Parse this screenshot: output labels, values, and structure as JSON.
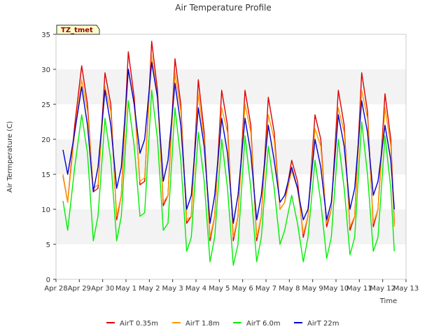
{
  "chart_data": {
    "type": "line",
    "title": "Air Temperature Profile",
    "xlabel": "Time",
    "ylabel": "Air Termperature (C)",
    "badge": "TZ_tmet",
    "ylim": [
      0,
      35
    ],
    "yticks": [
      0,
      5,
      10,
      15,
      20,
      25,
      30,
      35
    ],
    "xlim_days": [
      0,
      15
    ],
    "xtick_labels": [
      "Apr 28",
      "Apr 29",
      "Apr 30",
      "May 1",
      "May 2",
      "May 3",
      "May 4",
      "May 5",
      "May 6",
      "May 7",
      "May 8",
      "May 9",
      "May 10",
      "May 11",
      "May 12",
      "May 13"
    ],
    "grid": "horizontal bands",
    "legend_position": "bottom",
    "series": [
      {
        "name": "AirT 0.35m",
        "color": "#dd0000",
        "x": [
          0.3,
          0.5,
          0.8,
          1.1,
          1.35,
          1.6,
          1.8,
          2.1,
          2.35,
          2.6,
          2.8,
          3.1,
          3.35,
          3.6,
          3.8,
          4.1,
          4.35,
          4.6,
          4.8,
          5.1,
          5.35,
          5.6,
          5.8,
          6.1,
          6.35,
          6.6,
          6.8,
          7.1,
          7.35,
          7.6,
          7.8,
          8.1,
          8.35,
          8.6,
          8.8,
          9.1,
          9.35,
          9.6,
          9.8,
          10.1,
          10.35,
          10.6,
          10.8,
          11.1,
          11.35,
          11.6,
          11.8,
          12.1,
          12.35,
          12.6,
          12.8,
          13.1,
          13.35,
          13.6,
          13.8,
          14.1,
          14.35,
          14.5
        ],
        "y": [
          14.8,
          11,
          22,
          30.5,
          25,
          12.5,
          13,
          29.5,
          25,
          8.5,
          12,
          32.5,
          26,
          13.5,
          14,
          34,
          27,
          10.5,
          12,
          31.5,
          25,
          8,
          9,
          28.5,
          21,
          5.5,
          9,
          27,
          22,
          5.5,
          9,
          27,
          22,
          5.5,
          9,
          26,
          21,
          10,
          11,
          17,
          14,
          6,
          9,
          23.5,
          20,
          7.5,
          10,
          27,
          22,
          7,
          9,
          29.5,
          24,
          7.5,
          10,
          26.5,
          20,
          8
        ]
      },
      {
        "name": "AirT 1.8m",
        "color": "#ff9900",
        "x": [
          0.3,
          0.5,
          0.8,
          1.1,
          1.35,
          1.6,
          1.8,
          2.1,
          2.35,
          2.6,
          2.8,
          3.1,
          3.35,
          3.6,
          3.8,
          4.1,
          4.35,
          4.6,
          4.8,
          5.1,
          5.35,
          5.6,
          5.8,
          6.1,
          6.35,
          6.6,
          6.8,
          7.1,
          7.35,
          7.6,
          7.8,
          8.1,
          8.35,
          8.6,
          8.8,
          9.1,
          9.35,
          9.6,
          9.8,
          10.1,
          10.35,
          10.6,
          10.8,
          11.1,
          11.35,
          11.6,
          11.8,
          12.1,
          12.35,
          12.6,
          12.8,
          13.1,
          13.35,
          13.6,
          13.8,
          14.1,
          14.35,
          14.5
        ],
        "y": [
          15,
          11,
          21,
          28.5,
          24,
          13,
          13.5,
          27.5,
          24,
          9,
          12,
          30,
          25,
          14,
          14.5,
          32,
          26,
          11,
          12,
          29.5,
          24,
          8.5,
          9,
          26.5,
          20,
          6,
          9,
          24.5,
          21,
          6,
          9,
          25,
          21,
          6,
          9,
          23.5,
          20,
          10,
          11,
          15.5,
          13,
          6.5,
          9,
          21.5,
          19,
          8,
          10,
          24.5,
          21,
          7.5,
          9,
          27,
          23,
          8,
          10,
          24.5,
          19,
          7.5
        ]
      },
      {
        "name": "AirT 6.0m",
        "color": "#00ee00",
        "x": [
          0.3,
          0.5,
          0.8,
          1.1,
          1.35,
          1.6,
          1.8,
          2.1,
          2.35,
          2.6,
          2.8,
          3.1,
          3.35,
          3.6,
          3.8,
          4.1,
          4.35,
          4.6,
          4.8,
          5.1,
          5.35,
          5.6,
          5.8,
          6.1,
          6.35,
          6.6,
          6.8,
          7.1,
          7.35,
          7.6,
          7.8,
          8.1,
          8.35,
          8.6,
          8.8,
          9.1,
          9.35,
          9.6,
          9.8,
          10.1,
          10.35,
          10.6,
          10.8,
          11.1,
          11.35,
          11.6,
          11.8,
          12.1,
          12.35,
          12.6,
          12.8,
          13.1,
          13.35,
          13.6,
          13.8,
          14.1,
          14.35,
          14.5
        ],
        "y": [
          11.2,
          7,
          16,
          23.5,
          18,
          5.5,
          9,
          23,
          17,
          5.5,
          9,
          25.5,
          19,
          9,
          9.5,
          27,
          20,
          7,
          8,
          24.5,
          17,
          4,
          6,
          21,
          14,
          2.5,
          6,
          20,
          13,
          2,
          5,
          20.5,
          13,
          2.5,
          6,
          19,
          13,
          5,
          7,
          12,
          8,
          2.5,
          6,
          17,
          11,
          3,
          6,
          20,
          13,
          3.5,
          6,
          22.5,
          15,
          4,
          6,
          20.5,
          13,
          4
        ]
      },
      {
        "name": "AirT 22m",
        "color": "#0000cc",
        "x": [
          0.3,
          0.5,
          0.8,
          1.1,
          1.35,
          1.6,
          1.8,
          2.1,
          2.35,
          2.6,
          2.8,
          3.1,
          3.35,
          3.6,
          3.8,
          4.1,
          4.35,
          4.6,
          4.8,
          5.1,
          5.35,
          5.6,
          5.8,
          6.1,
          6.35,
          6.6,
          6.8,
          7.1,
          7.35,
          7.6,
          7.8,
          8.1,
          8.35,
          8.6,
          8.8,
          9.1,
          9.35,
          9.6,
          9.8,
          10.1,
          10.35,
          10.6,
          10.8,
          11.1,
          11.35,
          11.6,
          11.8,
          12.1,
          12.35,
          12.6,
          12.8,
          13.1,
          13.35,
          13.6,
          13.8,
          14.1,
          14.35,
          14.5
        ],
        "y": [
          18.5,
          15,
          21,
          27.5,
          22,
          12.5,
          16,
          27,
          22,
          13,
          16,
          30,
          25,
          18,
          20,
          31,
          26,
          14,
          17,
          28,
          22,
          10,
          12,
          24.5,
          19,
          8,
          12,
          23,
          18,
          8,
          12,
          23,
          18,
          8.5,
          12,
          22,
          17,
          11,
          12,
          16,
          13,
          8.5,
          10,
          20,
          16,
          8.5,
          11,
          23.5,
          19,
          10,
          13,
          25.5,
          21,
          12,
          14,
          22,
          17,
          10
        ]
      }
    ]
  }
}
